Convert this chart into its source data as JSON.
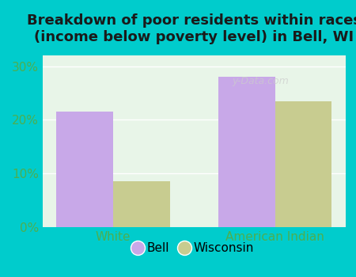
{
  "title": "Breakdown of poor residents within races\n(income below poverty level) in Bell, WI",
  "categories": [
    "White",
    "American Indian"
  ],
  "bell_values": [
    21.5,
    28.0
  ],
  "wisconsin_values": [
    8.5,
    23.5
  ],
  "bell_color": "#C8A8E8",
  "wisconsin_color": "#C8CC90",
  "background_outer": "#00CCCC",
  "background_inner": "#E8F5E8",
  "title_color": "#1a1a1a",
  "tick_label_color": "#4CAF50",
  "ylim": [
    0,
    32
  ],
  "yticks": [
    0,
    10,
    20,
    30
  ],
  "bar_width": 0.35,
  "legend_labels": [
    "Bell",
    "Wisconsin"
  ],
  "watermark": "y-Data.com"
}
